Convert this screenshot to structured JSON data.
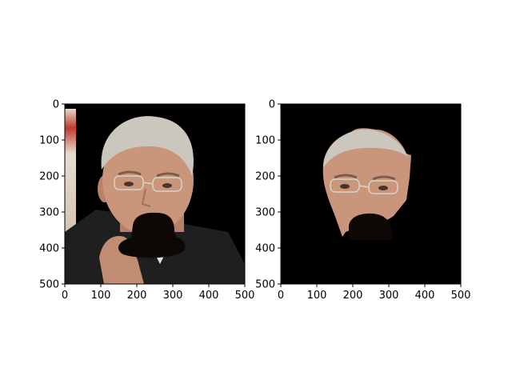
{
  "chart_data": [
    {
      "type": "image",
      "title": "",
      "xlabel": "",
      "ylabel": "",
      "xlim": [
        0,
        500
      ],
      "ylim": [
        500,
        0
      ],
      "xticks": [
        0,
        100,
        200,
        300,
        400,
        500
      ],
      "yticks": [
        0,
        100,
        200,
        300,
        400,
        500
      ],
      "content": "photo-face-with-dark-occlusion",
      "colors": {
        "background": "#000000",
        "hair": "#c9c5bd",
        "skin": "#c9967b",
        "suit": "#1e1e1e",
        "occluder": "#0d0706"
      }
    },
    {
      "type": "image",
      "title": "",
      "xlabel": "",
      "ylabel": "",
      "xlim": [
        0,
        500
      ],
      "ylim": [
        500,
        0
      ],
      "xticks": [
        0,
        100,
        200,
        300,
        400,
        500
      ],
      "yticks": [
        0,
        100,
        200,
        300,
        400,
        500
      ],
      "content": "segmented-face-on-black",
      "colors": {
        "background": "#000000",
        "hair": "#c9c5bd",
        "skin": "#c9967b",
        "occluder": "#0d0706"
      }
    }
  ]
}
